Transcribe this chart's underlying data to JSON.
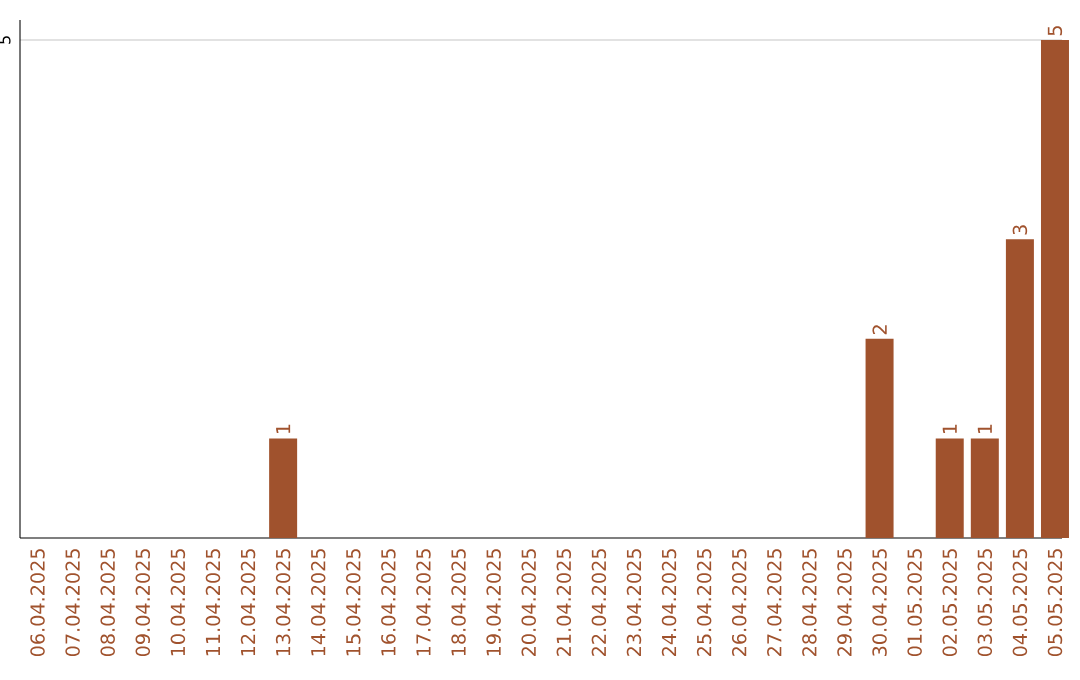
{
  "chart_data": {
    "type": "bar",
    "categories": [
      "06.04.2025",
      "07.04.2025",
      "08.04.2025",
      "09.04.2025",
      "10.04.2025",
      "11.04.2025",
      "12.04.2025",
      "13.04.2025",
      "14.04.2025",
      "15.04.2025",
      "16.04.2025",
      "17.04.2025",
      "18.04.2025",
      "19.04.2025",
      "20.04.2025",
      "21.04.2025",
      "22.04.2025",
      "23.04.2025",
      "24.04.2025",
      "25.04.2025",
      "26.04.2025",
      "27.04.2025",
      "28.04.2025",
      "29.04.2025",
      "30.04.2025",
      "01.05.2025",
      "02.05.2025",
      "03.05.2025",
      "04.05.2025",
      "05.05.2025"
    ],
    "values": [
      0,
      0,
      0,
      0,
      0,
      0,
      0,
      1,
      0,
      0,
      0,
      0,
      0,
      0,
      0,
      0,
      0,
      0,
      0,
      0,
      0,
      0,
      0,
      0,
      2,
      0,
      1,
      1,
      3,
      5
    ],
    "value_labels": [
      null,
      null,
      null,
      null,
      null,
      null,
      null,
      "1",
      null,
      null,
      null,
      null,
      null,
      null,
      null,
      null,
      null,
      null,
      null,
      null,
      null,
      null,
      null,
      null,
      "2",
      null,
      "1",
      "1",
      "3",
      "5"
    ],
    "color": "#a0522d",
    "ylim": [
      0,
      5.2
    ],
    "yticks": [
      5
    ],
    "grid": "y"
  }
}
